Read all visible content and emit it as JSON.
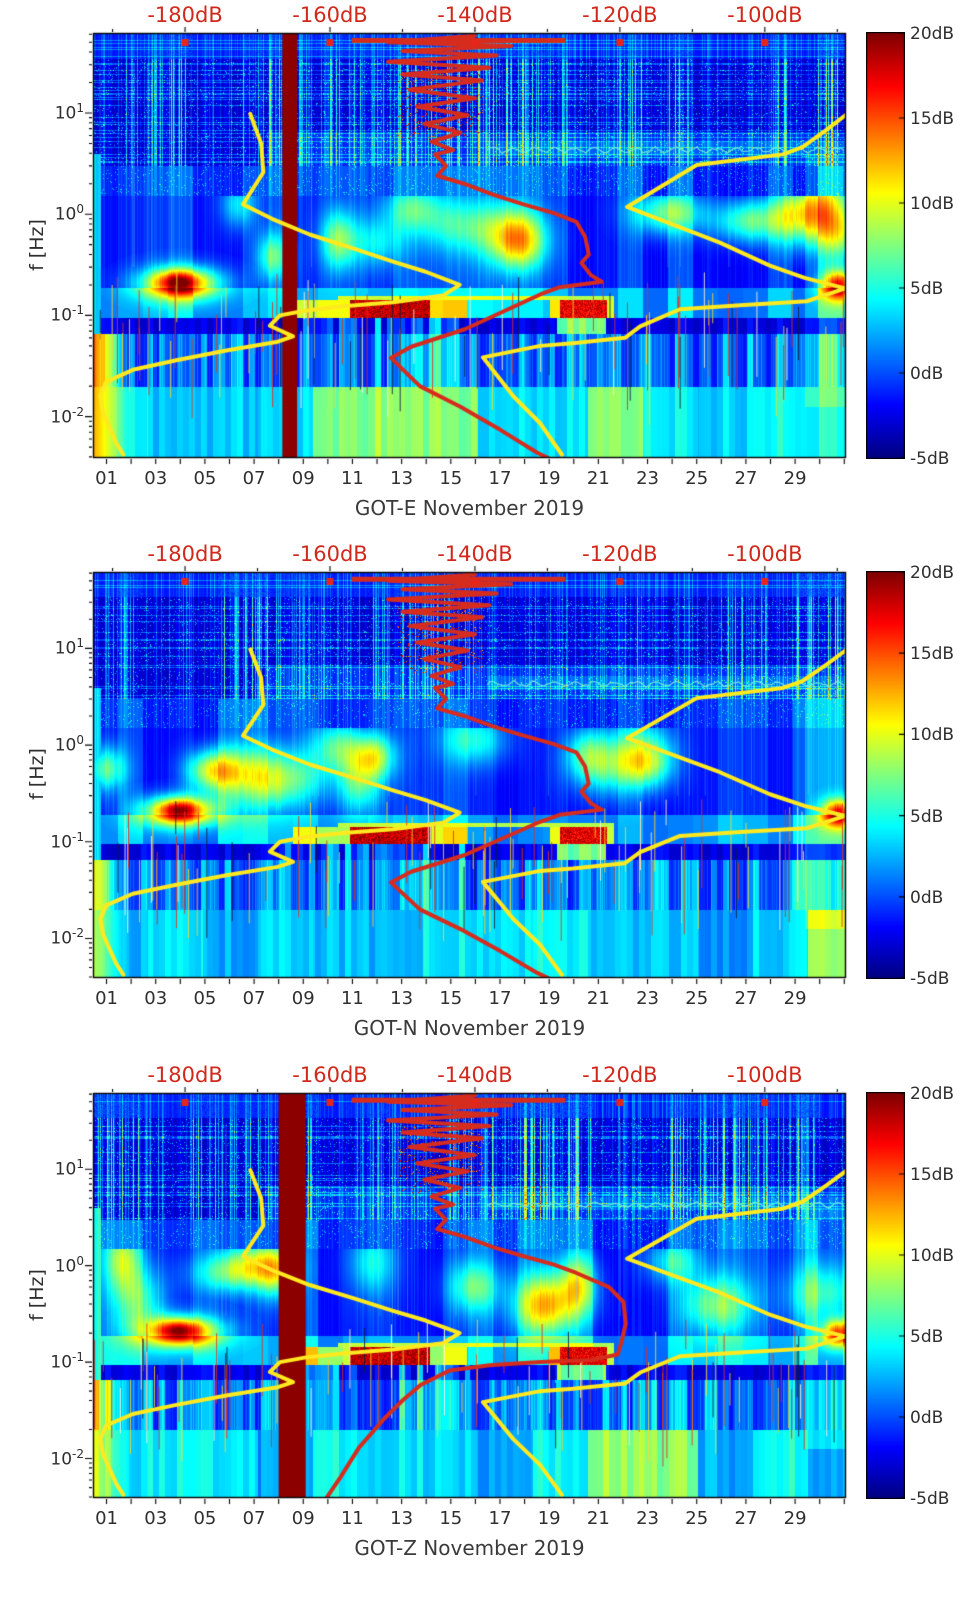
{
  "page": {
    "kind": "seismic spectrogram figure stack",
    "background": "#ffffff"
  },
  "colors": {
    "top_axis_text": "#d0291c",
    "tick_text": "#2f2f2f",
    "title_text": "#3a3a3a",
    "curve_yellow": "#ffe91f",
    "curve_red": "#d62c1e",
    "gap_band": "#8c0000",
    "axis_line": "#000000"
  },
  "chart_data": {
    "type": "heatmap",
    "axes": {
      "y_label": "f [Hz]",
      "y_tick_exponents": [
        "1",
        "0",
        "-1",
        "-2"
      ],
      "freq_range_hz": [
        0.0039,
        61.7
      ],
      "x_tick_labels": [
        "01",
        "03",
        "05",
        "07",
        "09",
        "11",
        "13",
        "15",
        "17",
        "19",
        "21",
        "23",
        "25",
        "27",
        "29"
      ],
      "x_tick_days": [
        1,
        3,
        5,
        7,
        9,
        11,
        13,
        15,
        17,
        19,
        21,
        23,
        25,
        27,
        29
      ],
      "day_range": [
        0.45,
        31.07
      ],
      "top_axis_labels": [
        "-180dB",
        "-160dB",
        "-140dB",
        "-120dB",
        "-100dB"
      ],
      "top_axis_values_db": [
        -180,
        -160,
        -140,
        -120,
        -100
      ],
      "top_axis_db_range": [
        -192.7,
        -88.8
      ]
    },
    "colorbar": {
      "labels": [
        "20dB",
        "15dB",
        "10dB",
        "5dB",
        "0dB",
        "-5dB"
      ],
      "values_db": [
        20,
        15,
        10,
        5,
        0,
        -5
      ],
      "range_db": [
        -5,
        20
      ],
      "colormap": "jet"
    },
    "shared_curves": {
      "low_noise_model": [
        [
          -171,
          9.8
        ],
        [
          -169.5,
          5
        ],
        [
          -169.2,
          2.6
        ],
        [
          -172,
          1.25
        ],
        [
          -168,
          0.9
        ],
        [
          -162.8,
          0.63
        ],
        [
          -156.8,
          0.46
        ],
        [
          -151.3,
          0.34
        ],
        [
          -146.8,
          0.27
        ],
        [
          -142.1,
          0.2
        ],
        [
          -144.4,
          0.157
        ],
        [
          -151.3,
          0.135
        ],
        [
          -158.2,
          0.123
        ],
        [
          -163.3,
          0.112
        ],
        [
          -166.9,
          0.1
        ],
        [
          -168.3,
          0.079
        ],
        [
          -165.1,
          0.062
        ],
        [
          -167.2,
          0.055
        ],
        [
          -174.3,
          0.045
        ],
        [
          -181.2,
          0.036
        ],
        [
          -187.2,
          0.029
        ],
        [
          -190.9,
          0.022
        ],
        [
          -191.7,
          0.016
        ],
        [
          -191.3,
          0.011
        ],
        [
          -189.5,
          0.0055
        ],
        [
          -188.5,
          0.0042
        ]
      ],
      "high_noise_model": [
        [
          -88.8,
          9.6
        ],
        [
          -91.5,
          6.8
        ],
        [
          -94.8,
          4.6
        ],
        [
          -97.5,
          3.9
        ],
        [
          -109.4,
          3.06
        ],
        [
          -119,
          1.18
        ],
        [
          -106.2,
          0.524
        ],
        [
          -99.3,
          0.31
        ],
        [
          -94.5,
          0.235
        ],
        [
          -88.9,
          0.185
        ],
        [
          -94.2,
          0.138
        ],
        [
          -103.4,
          0.126
        ],
        [
          -111.7,
          0.115
        ],
        [
          -117.2,
          0.078
        ],
        [
          -119.3,
          0.06
        ],
        [
          -126.5,
          0.053
        ],
        [
          -131,
          0.05
        ],
        [
          -138.9,
          0.0385
        ],
        [
          -134.7,
          0.0159
        ],
        [
          -131,
          0.0086
        ],
        [
          -128,
          0.0042
        ]
      ],
      "median_psd_upper": [
        [
          -140,
          58
        ],
        [
          -152,
          50
        ],
        [
          -135,
          46
        ],
        [
          -150,
          41
        ],
        [
          -137,
          37
        ],
        [
          -152,
          32
        ],
        [
          -138,
          28
        ],
        [
          -150,
          24
        ],
        [
          -139,
          21
        ],
        [
          -149,
          17
        ],
        [
          -140,
          14
        ],
        [
          -148,
          11.5
        ],
        [
          -141,
          9.5
        ],
        [
          -147,
          7.8
        ],
        [
          -142,
          6.4
        ],
        [
          -146,
          5.2
        ],
        [
          -143,
          4.3
        ],
        [
          -145.5,
          3.9
        ],
        [
          -144,
          3
        ],
        [
          -145.2,
          2.4
        ],
        [
          -141.5,
          2
        ],
        [
          -137.4,
          1.55
        ],
        [
          -133.4,
          1.26
        ]
      ],
      "median_psd_lower_default": [
        [
          -129.2,
          1.03
        ],
        [
          -126,
          0.84
        ],
        [
          -124.8,
          0.6
        ],
        [
          -124.3,
          0.4
        ],
        [
          -125.3,
          0.33
        ],
        [
          -124,
          0.25
        ],
        [
          -122.5,
          0.215
        ],
        [
          -128.3,
          0.19
        ],
        [
          -131,
          0.161
        ],
        [
          -136,
          0.11
        ],
        [
          -141.4,
          0.073
        ],
        [
          -148.8,
          0.049
        ],
        [
          -151.6,
          0.038
        ],
        [
          -147.6,
          0.02
        ],
        [
          -142,
          0.0125
        ],
        [
          -136.5,
          0.0074
        ],
        [
          -131.4,
          0.0044
        ],
        [
          -129.9,
          0.0039
        ]
      ],
      "median_psd_lower_alt": [
        [
          -129.2,
          1.03
        ],
        [
          -126,
          0.84
        ],
        [
          -121.5,
          0.6
        ],
        [
          -119.5,
          0.42
        ],
        [
          -119.2,
          0.25
        ],
        [
          -119.8,
          0.16
        ],
        [
          -120.3,
          0.12
        ],
        [
          -124,
          0.105
        ],
        [
          -131,
          0.1
        ],
        [
          -138,
          0.093
        ],
        [
          -143.5,
          0.082
        ],
        [
          -147.5,
          0.058
        ],
        [
          -150,
          0.04
        ],
        [
          -152.5,
          0.026
        ],
        [
          -156,
          0.013
        ],
        [
          -158.5,
          0.0065
        ],
        [
          -160.5,
          0.0039
        ]
      ],
      "red_top_bar_db": [
        -157,
        -127.5
      ],
      "red_top_bar_hz": 52
    },
    "features": {
      "microseism_blob": {
        "day": 4.0,
        "freq_hz": 0.21
      },
      "right_edge_blob": {
        "day": 30.75,
        "freq_hz": 0.2
      },
      "saturated_band_hz": [
        0.095,
        0.145
      ],
      "saturated_band_core_days": [
        [
          10.9,
          14.15
        ],
        [
          19.4,
          21.35
        ]
      ],
      "saturated_band_wing_days": [
        8.55,
        15.65
      ]
    },
    "charts": [
      {
        "id": "GOT-E",
        "title": "GOT-E November 2019",
        "gap_band_days": [
          8.15,
          8.75
        ],
        "median_lower": "default",
        "seed": 11
      },
      {
        "id": "GOT-N",
        "title": "GOT-N November 2019",
        "gap_band_days": null,
        "median_lower": "default",
        "seed": 22
      },
      {
        "id": "GOT-Z",
        "title": "GOT-Z November 2019",
        "gap_band_days": [
          8.0,
          9.1
        ],
        "median_lower": "alt",
        "seed": 33
      }
    ]
  }
}
